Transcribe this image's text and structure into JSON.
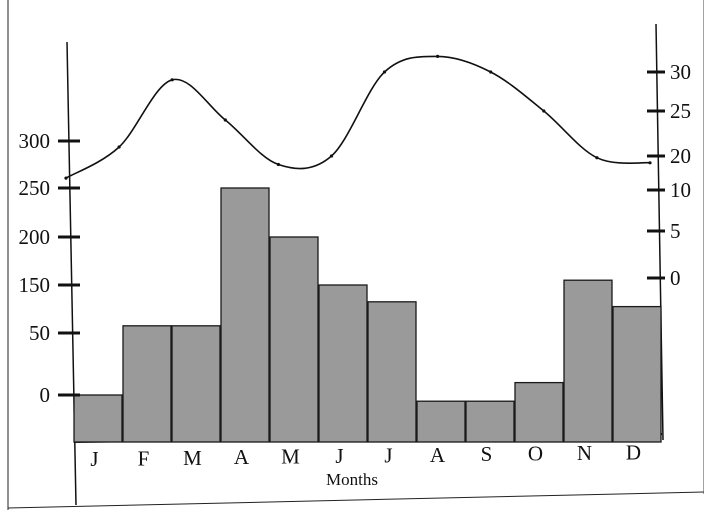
{
  "chart_data": {
    "type": "bar",
    "xlabel": "Months",
    "categories": [
      "J",
      "F",
      "M",
      "A",
      "M",
      "J",
      "J",
      "A",
      "S",
      "O",
      "N",
      "D"
    ],
    "bars": {
      "values": [
        0,
        65,
        65,
        250,
        200,
        150,
        115,
        -5,
        -5,
        10,
        155,
        105
      ],
      "axis": "left",
      "color": "#9a9a9a",
      "edge_color": "#1a1a1a"
    },
    "line": {
      "axis": "right",
      "color": "#111111",
      "values": [
        13.5,
        21,
        29,
        24,
        17.5,
        20,
        30,
        32,
        30,
        25,
        19.5,
        18
      ]
    },
    "left_axis": {
      "ticks": [
        0,
        50,
        150,
        200,
        250,
        300
      ],
      "tick_labels": [
        "0",
        "50",
        "150",
        "200",
        "250",
        "300"
      ]
    },
    "right_axis": {
      "ticks": [
        0,
        5,
        10,
        20,
        25,
        30
      ],
      "tick_labels": [
        "0",
        "5",
        "10",
        "20",
        "25",
        "30"
      ]
    },
    "grid": false
  }
}
